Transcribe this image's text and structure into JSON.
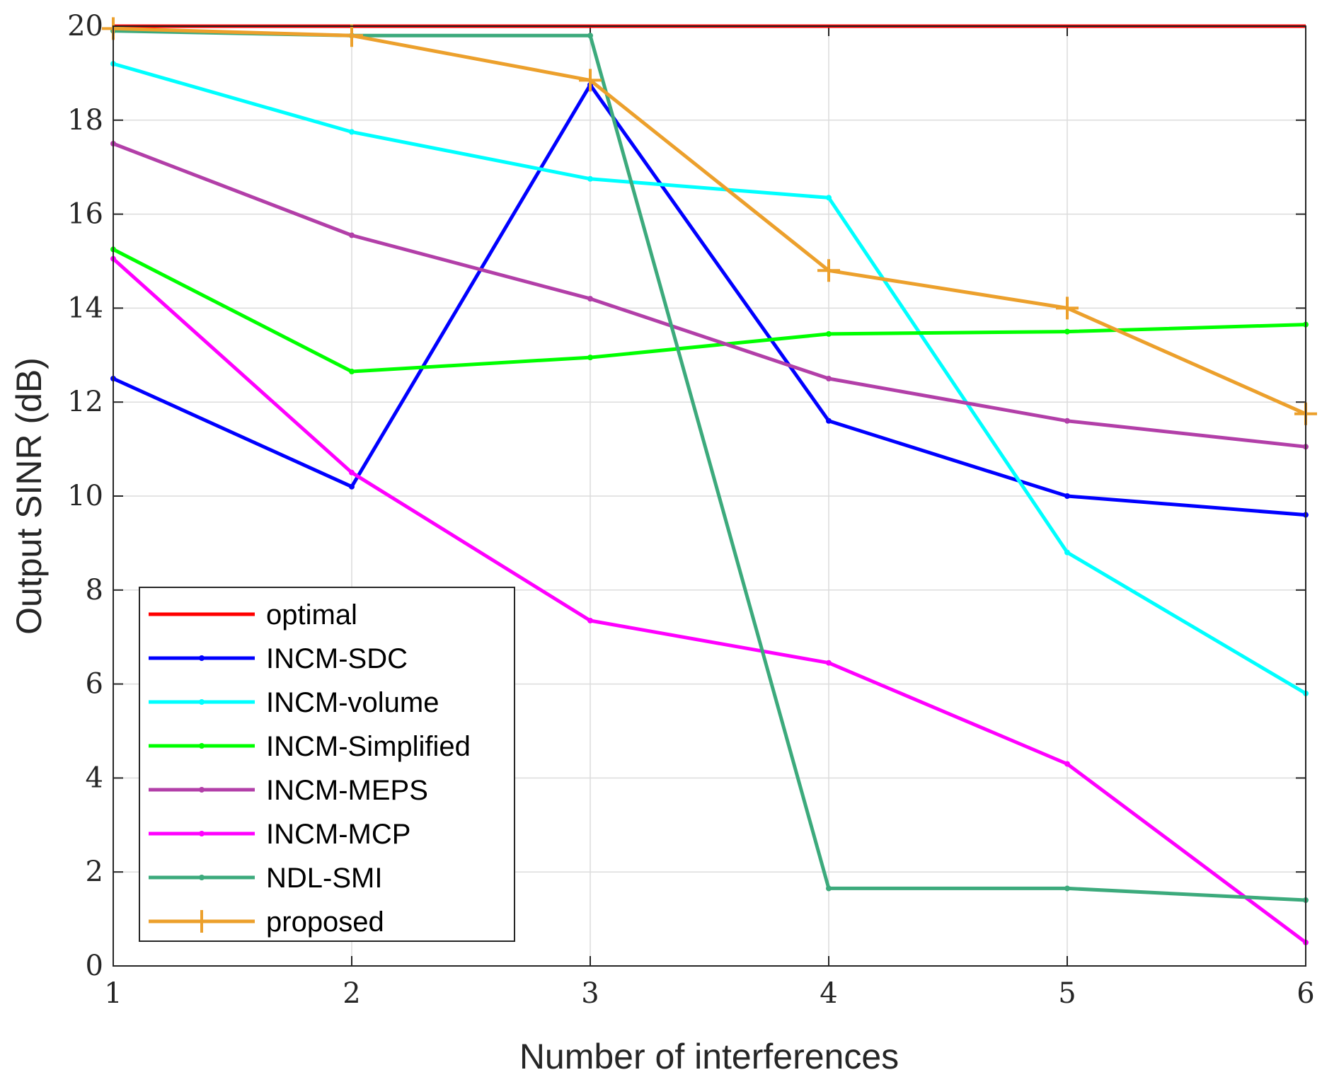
{
  "chart_data": {
    "type": "line",
    "xlabel": "Number of interferences",
    "ylabel": "Output SINR (dB)",
    "xlim": [
      1,
      6
    ],
    "ylim": [
      0,
      20
    ],
    "x": [
      1,
      2,
      3,
      4,
      5,
      6
    ],
    "xticks": [
      "1",
      "2",
      "3",
      "4",
      "5",
      "6"
    ],
    "yticks": [
      "0",
      "2",
      "4",
      "6",
      "8",
      "10",
      "12",
      "14",
      "16",
      "18",
      "20"
    ],
    "grid": true,
    "legend_position": "bottom-left",
    "series": [
      {
        "name": "optimal",
        "color": "#ff0000",
        "marker": "none",
        "values": [
          20,
          20,
          20,
          20,
          20,
          20
        ]
      },
      {
        "name": "INCM-SDC",
        "color": "#0000ff",
        "marker": "dot",
        "values": [
          12.5,
          10.2,
          18.75,
          11.6,
          10.0,
          9.6
        ]
      },
      {
        "name": "INCM-volume",
        "color": "#00ffff",
        "marker": "dot",
        "values": [
          19.2,
          17.75,
          16.75,
          16.35,
          8.8,
          5.8
        ]
      },
      {
        "name": "INCM-Simplified",
        "color": "#00ff00",
        "marker": "dot",
        "values": [
          15.25,
          12.65,
          12.95,
          13.45,
          13.5,
          13.65
        ]
      },
      {
        "name": "INCM-MEPS",
        "color": "#b23fa8",
        "marker": "dot",
        "values": [
          17.5,
          15.55,
          14.2,
          12.5,
          11.6,
          11.05
        ]
      },
      {
        "name": "INCM-MCP",
        "color": "#ff00ff",
        "marker": "dot",
        "values": [
          15.05,
          10.5,
          7.35,
          6.45,
          4.3,
          0.5
        ]
      },
      {
        "name": "NDL-SMI",
        "color": "#3caa7c",
        "marker": "dot",
        "values": [
          19.9,
          19.8,
          19.8,
          1.65,
          1.65,
          1.4
        ]
      },
      {
        "name": "proposed",
        "color": "#eca02c",
        "marker": "plus",
        "values": [
          19.95,
          19.8,
          18.85,
          14.8,
          14.0,
          11.75
        ]
      }
    ]
  }
}
